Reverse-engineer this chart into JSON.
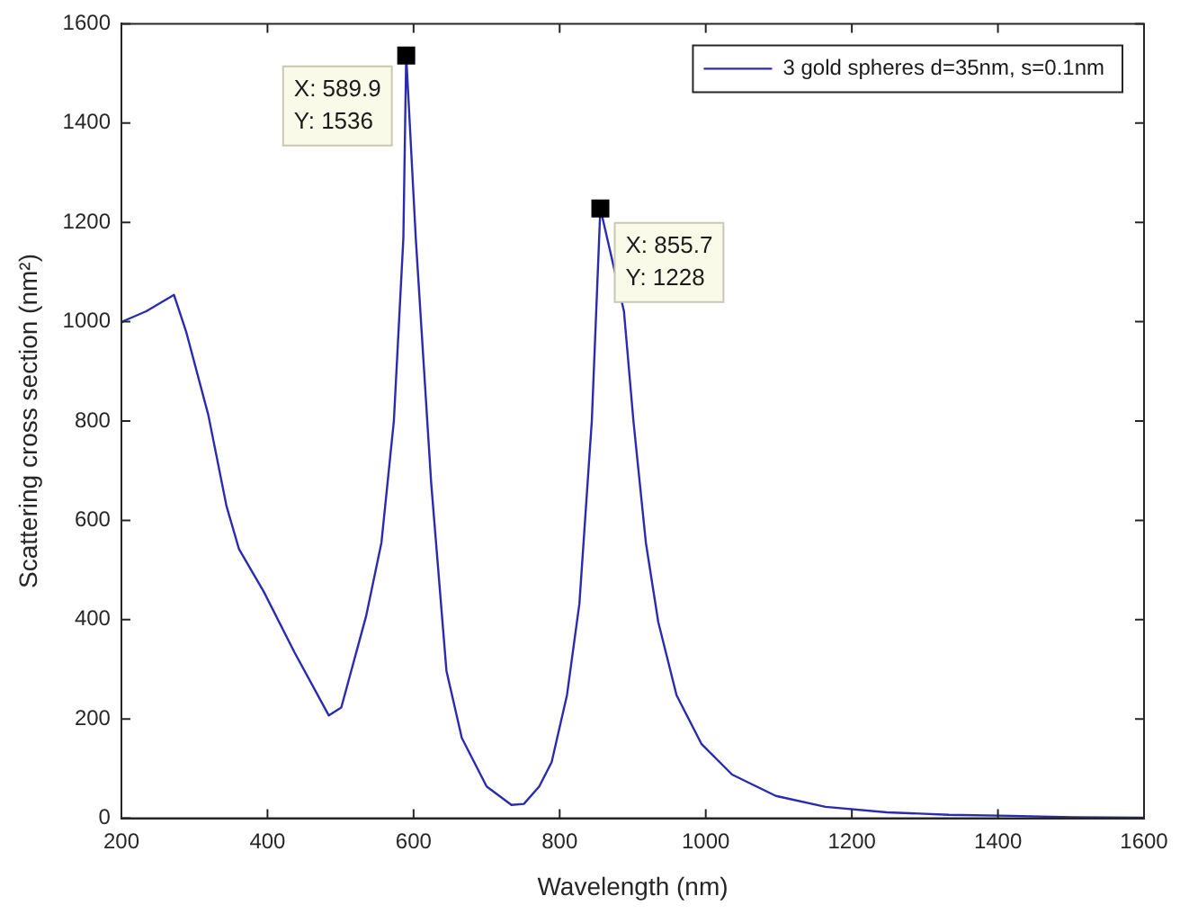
{
  "chart_data": {
    "type": "line",
    "xlabel": "Wavelength (nm)",
    "ylabel": "Scattering cross section (nm²)",
    "xlim": [
      200,
      1600
    ],
    "xticks": [
      200,
      400,
      600,
      800,
      1000,
      1200,
      1400,
      1600
    ],
    "ylim": [
      0,
      1600
    ],
    "yticks": [
      0,
      200,
      400,
      600,
      800,
      1000,
      1200,
      1400,
      1600
    ],
    "grid": false,
    "legend": "top right",
    "marker": "none",
    "line_style": "solid",
    "series": [
      {
        "name": "3 gold spheres d=35nm, s=0.1nm",
        "color": "#2b2bb0",
        "x": [
          200,
          204,
          234,
          272,
          289,
          319,
          344,
          361,
          395,
          437,
          484,
          501,
          535,
          556,
          573,
          586,
          589.9,
          603,
          624,
          645,
          666,
          700,
          734,
          751,
          772,
          789,
          810,
          827,
          844,
          855.7,
          888,
          901,
          918,
          935,
          960,
          994,
          1036,
          1096,
          1164,
          1248,
          1333,
          1418,
          1502,
          1600
        ],
        "values": [
          998,
          1002,
          1021,
          1054,
          978,
          812,
          628,
          542,
          456,
          334,
          207,
          223,
          407,
          555,
          800,
          1168,
          1536,
          1168,
          677,
          297,
          162,
          64,
          27,
          29,
          64,
          113,
          248,
          432,
          800,
          1228,
          1021,
          800,
          555,
          395,
          248,
          150,
          88,
          45,
          23,
          12,
          7,
          5,
          2,
          1
        ]
      }
    ],
    "annotations": [
      {
        "text": "X: 589.9\nY: 1536",
        "x": 589.9,
        "y": 1536
      },
      {
        "text": "X: 855.7\nY: 1228",
        "x": 855.7,
        "y": 1228
      }
    ]
  }
}
